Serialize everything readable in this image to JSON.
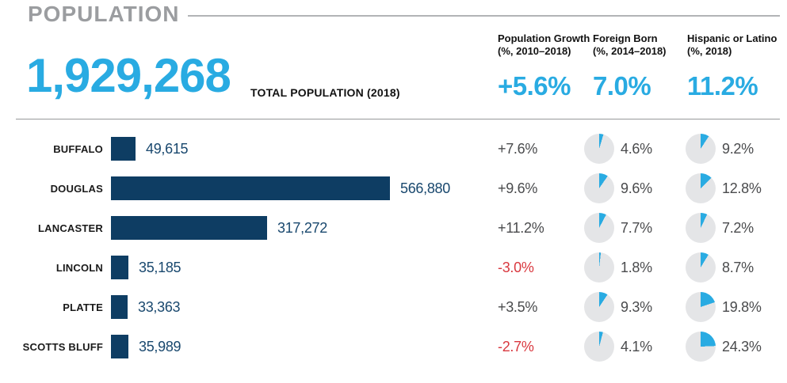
{
  "colors": {
    "accent": "#29ABE2",
    "navy": "#0E3D63",
    "negative_red": "#D9383F",
    "pie_track": "#E4E5E7",
    "title_gray": "#9B9DA0"
  },
  "header": {
    "title": "POPULATION",
    "total": {
      "value": "1,929,268",
      "label": "TOTAL POPULATION (2018)"
    },
    "columns": [
      {
        "label_line1": "Population Growth",
        "label_line2": "(%, 2010–2018)",
        "value": "+5.6%"
      },
      {
        "label_line1": "Foreign Born",
        "label_line2": "(%, 2014–2018)",
        "value": "7.0%"
      },
      {
        "label_line1": "Hispanic or Latino",
        "label_line2": "(%, 2018)",
        "value": "11.2%"
      }
    ]
  },
  "rows": [
    {
      "county": "BUFFALO",
      "population": "49,615",
      "population_value": 49615,
      "growth": "+7.6%",
      "growth_negative": false,
      "foreign_born": "4.6%",
      "foreign_born_pct": 4.6,
      "hispanic": "9.2%",
      "hispanic_pct": 9.2
    },
    {
      "county": "DOUGLAS",
      "population": "566,880",
      "population_value": 566880,
      "growth": "+9.6%",
      "growth_negative": false,
      "foreign_born": "9.6%",
      "foreign_born_pct": 9.6,
      "hispanic": "12.8%",
      "hispanic_pct": 12.8
    },
    {
      "county": "LANCASTER",
      "population": "317,272",
      "population_value": 317272,
      "growth": "+11.2%",
      "growth_negative": false,
      "foreign_born": "7.7%",
      "foreign_born_pct": 7.7,
      "hispanic": "7.2%",
      "hispanic_pct": 7.2
    },
    {
      "county": "LINCOLN",
      "population": "35,185",
      "population_value": 35185,
      "growth": "-3.0%",
      "growth_negative": true,
      "foreign_born": "1.8%",
      "foreign_born_pct": 1.8,
      "hispanic": "8.7%",
      "hispanic_pct": 8.7
    },
    {
      "county": "PLATTE",
      "population": "33,363",
      "population_value": 33363,
      "growth": "+3.5%",
      "growth_negative": false,
      "foreign_born": "9.3%",
      "foreign_born_pct": 9.3,
      "hispanic": "19.8%",
      "hispanic_pct": 19.8
    },
    {
      "county": "SCOTTS BLUFF",
      "population": "35,989",
      "population_value": 35989,
      "growth": "-2.7%",
      "growth_negative": true,
      "foreign_born": "4.1%",
      "foreign_born_pct": 4.1,
      "hispanic": "24.3%",
      "hispanic_pct": 24.3
    }
  ],
  "chart_data": {
    "type": "bar",
    "title": "POPULATION",
    "total_population_2018": 1929268,
    "state_summary": {
      "population_growth_pct_2010_2018": 5.6,
      "foreign_born_pct_2014_2018": 7.0,
      "hispanic_or_latino_pct_2018": 11.2
    },
    "categories": [
      "BUFFALO",
      "DOUGLAS",
      "LANCASTER",
      "LINCOLN",
      "PLATTE",
      "SCOTTS BLUFF"
    ],
    "series": [
      {
        "name": "Total Population (2018)",
        "values": [
          49615,
          566880,
          317272,
          35185,
          33363,
          35989
        ]
      },
      {
        "name": "Population Growth (%, 2010–2018)",
        "values": [
          7.6,
          9.6,
          11.2,
          -3.0,
          3.5,
          -2.7
        ]
      },
      {
        "name": "Foreign Born (%, 2014–2018)",
        "values": [
          4.6,
          9.6,
          7.7,
          1.8,
          9.3,
          4.1
        ]
      },
      {
        "name": "Hispanic or Latino (%, 2018)",
        "values": [
          9.2,
          12.8,
          7.2,
          8.7,
          19.8,
          24.3
        ]
      }
    ],
    "xlim": [
      0,
      566880
    ],
    "orientation": "horizontal",
    "grid": false,
    "legend": false
  }
}
